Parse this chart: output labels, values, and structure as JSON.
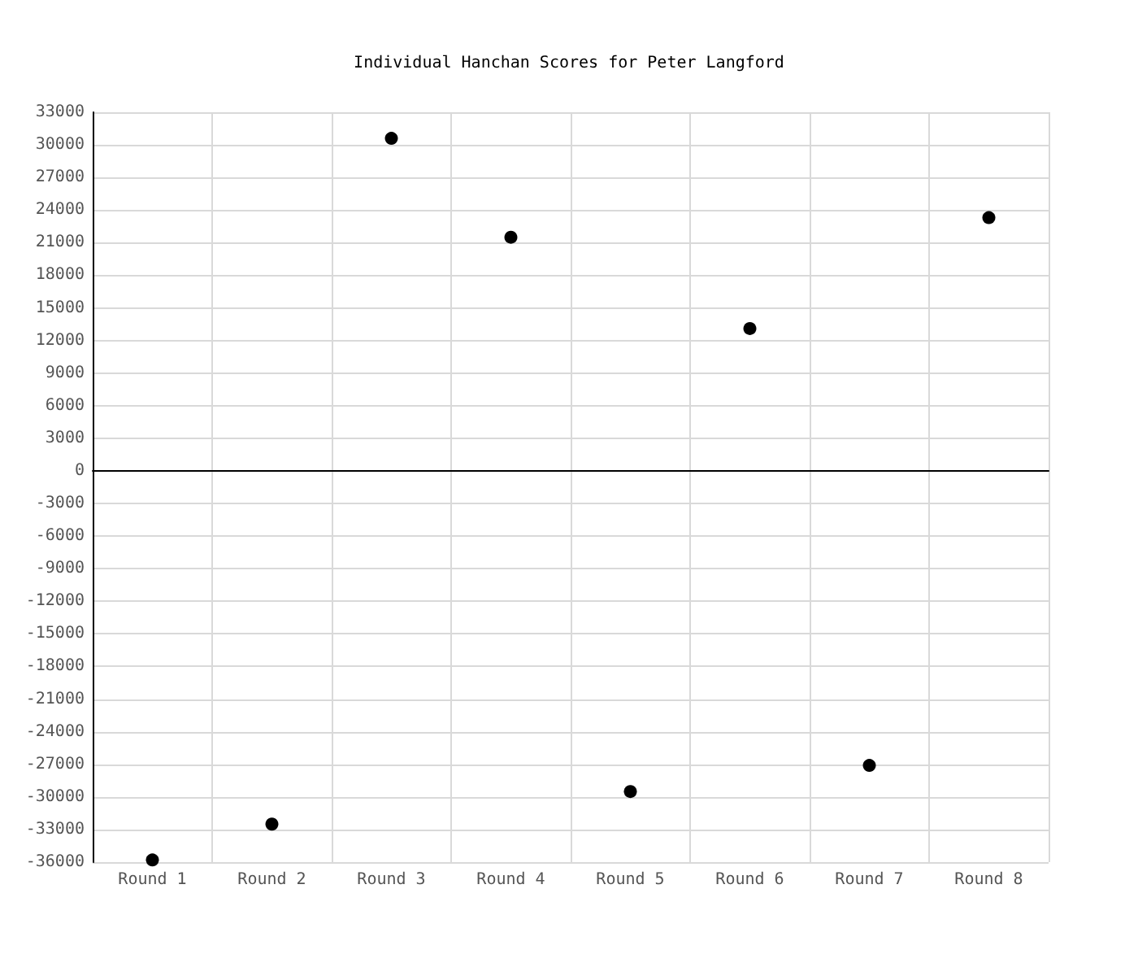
{
  "chart_data": {
    "type": "scatter",
    "title": "Individual Hanchan Scores for Peter Langford",
    "categories": [
      "Round 1",
      "Round 2",
      "Round 3",
      "Round 4",
      "Round 5",
      "Round 6",
      "Round 7",
      "Round 8"
    ],
    "values": [
      -35800,
      -32500,
      30600,
      21500,
      -29500,
      13100,
      -27100,
      23300
    ],
    "color": "#000000",
    "ylim": [
      -36000,
      33000
    ],
    "yticks": [
      -36000,
      -33000,
      -30000,
      -27000,
      -24000,
      -21000,
      -18000,
      -15000,
      -12000,
      -9000,
      -6000,
      -3000,
      0,
      3000,
      6000,
      9000,
      12000,
      15000,
      18000,
      21000,
      24000,
      27000,
      30000,
      33000
    ],
    "grid": true,
    "marker": "circle"
  }
}
